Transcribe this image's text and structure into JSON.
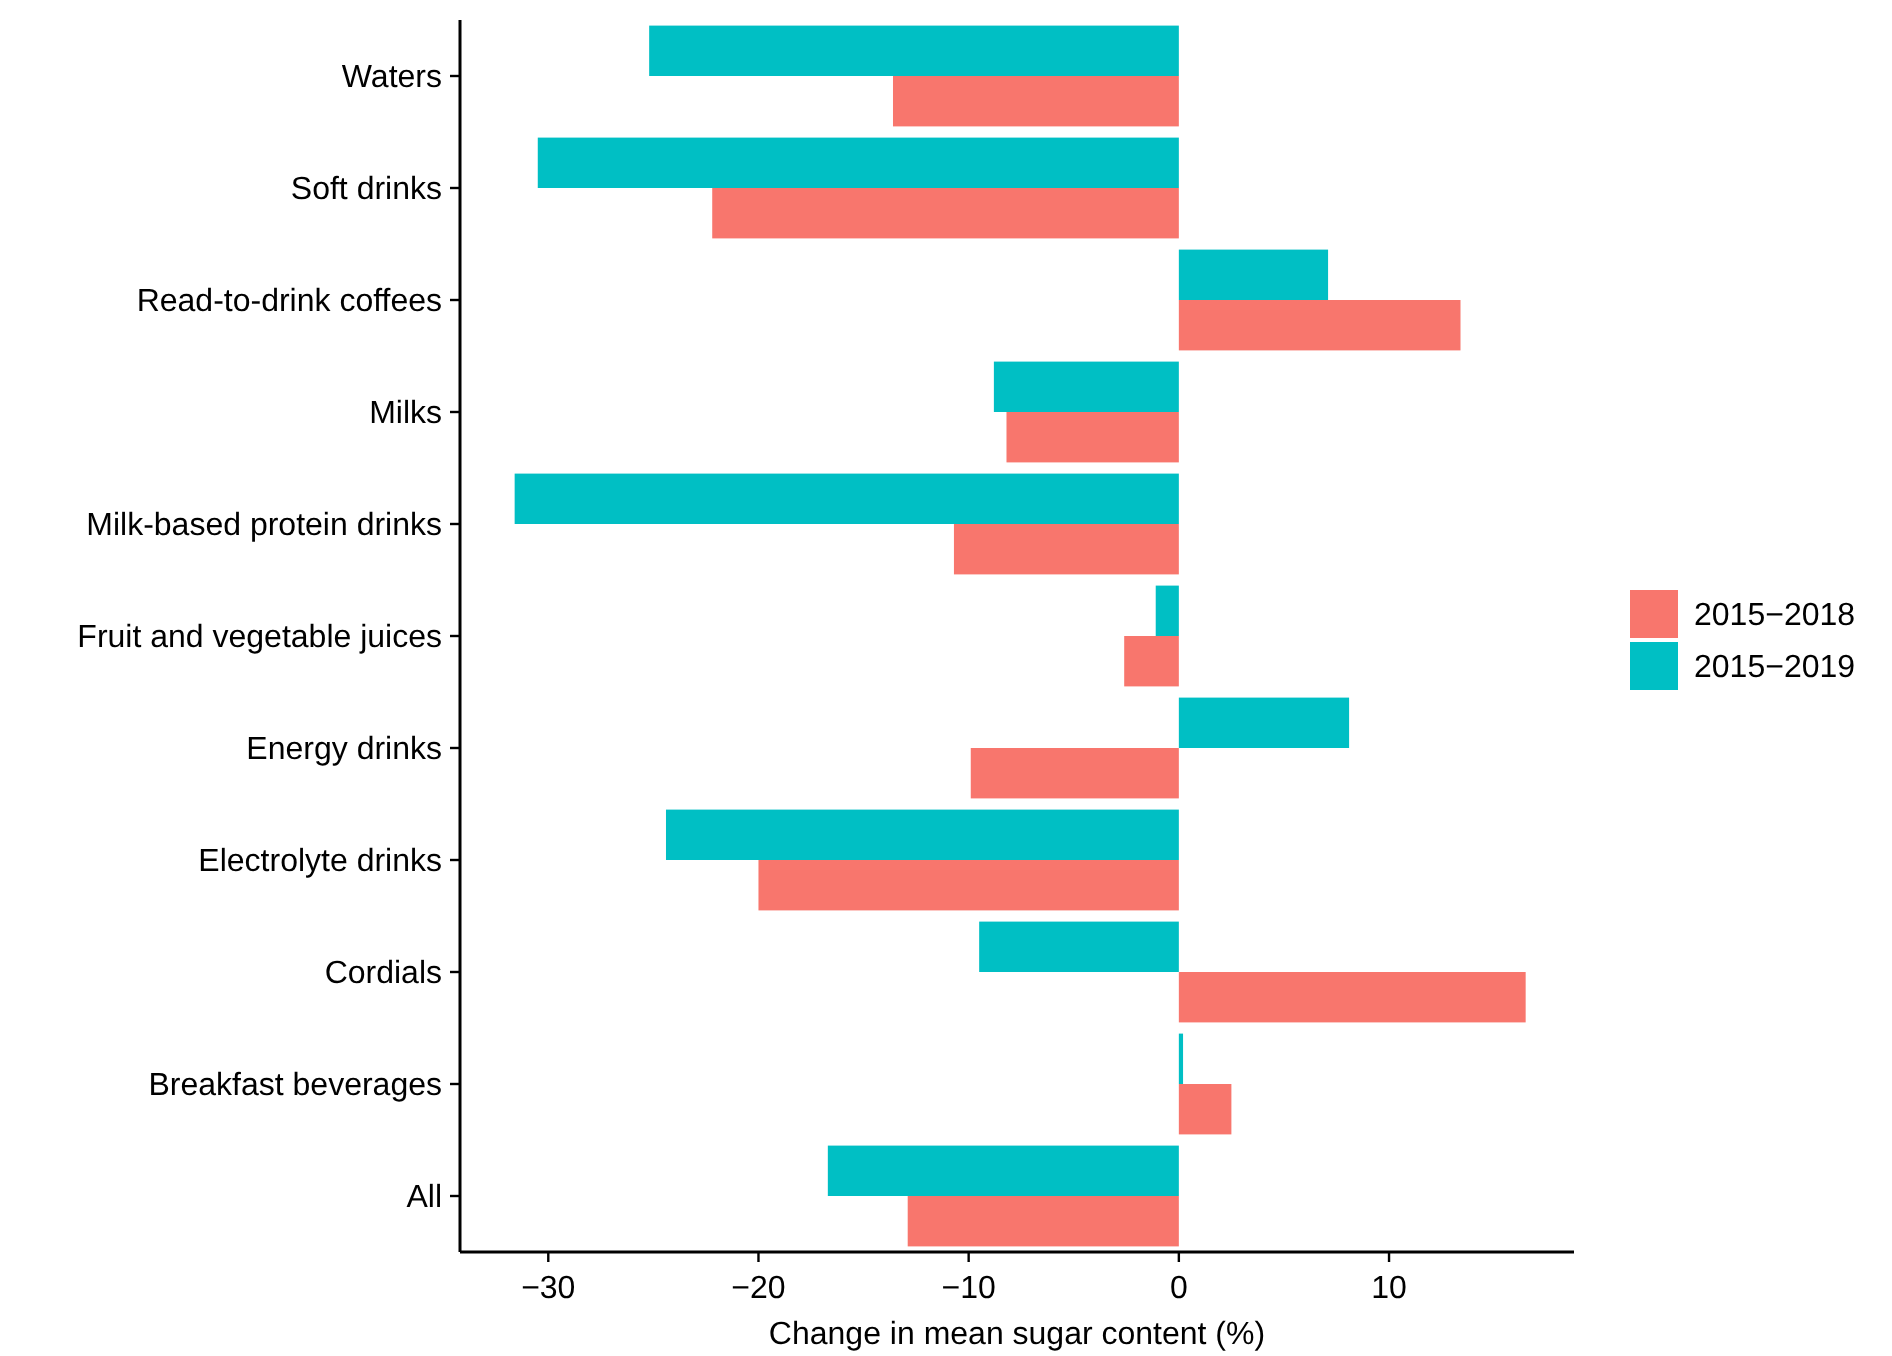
{
  "chart_data": {
    "type": "bar",
    "orientation": "horizontal",
    "xlabel": "Change in mean sugar content (%)",
    "categories": [
      "Waters",
      "Soft drinks",
      "Read-to-drink coffees",
      "Milks",
      "Milk-based protein drinks",
      "Fruit and vegetable juices",
      "Energy drinks",
      "Electrolyte drinks",
      "Cordials",
      "Breakfast beverages",
      "All"
    ],
    "series": [
      {
        "name": "2015−2018",
        "color": "#f8766d",
        "values": [
          -13.6,
          -22.2,
          13.4,
          -8.2,
          -10.7,
          -2.6,
          -9.9,
          -20.0,
          16.5,
          2.5,
          -12.9
        ]
      },
      {
        "name": "2015−2019",
        "color": "#00bfc4",
        "values": [
          -25.2,
          -30.5,
          7.1,
          -8.8,
          -31.6,
          -1.1,
          8.1,
          -24.4,
          -9.5,
          0.2,
          -16.7
        ]
      }
    ],
    "xlim": [
      -34.2,
      18.8
    ],
    "xticks": [
      {
        "value": -30,
        "label": "−30"
      },
      {
        "value": -20,
        "label": "−20"
      },
      {
        "value": -10,
        "label": "−10"
      },
      0,
      10
    ],
    "grid": false,
    "legend": "right"
  }
}
